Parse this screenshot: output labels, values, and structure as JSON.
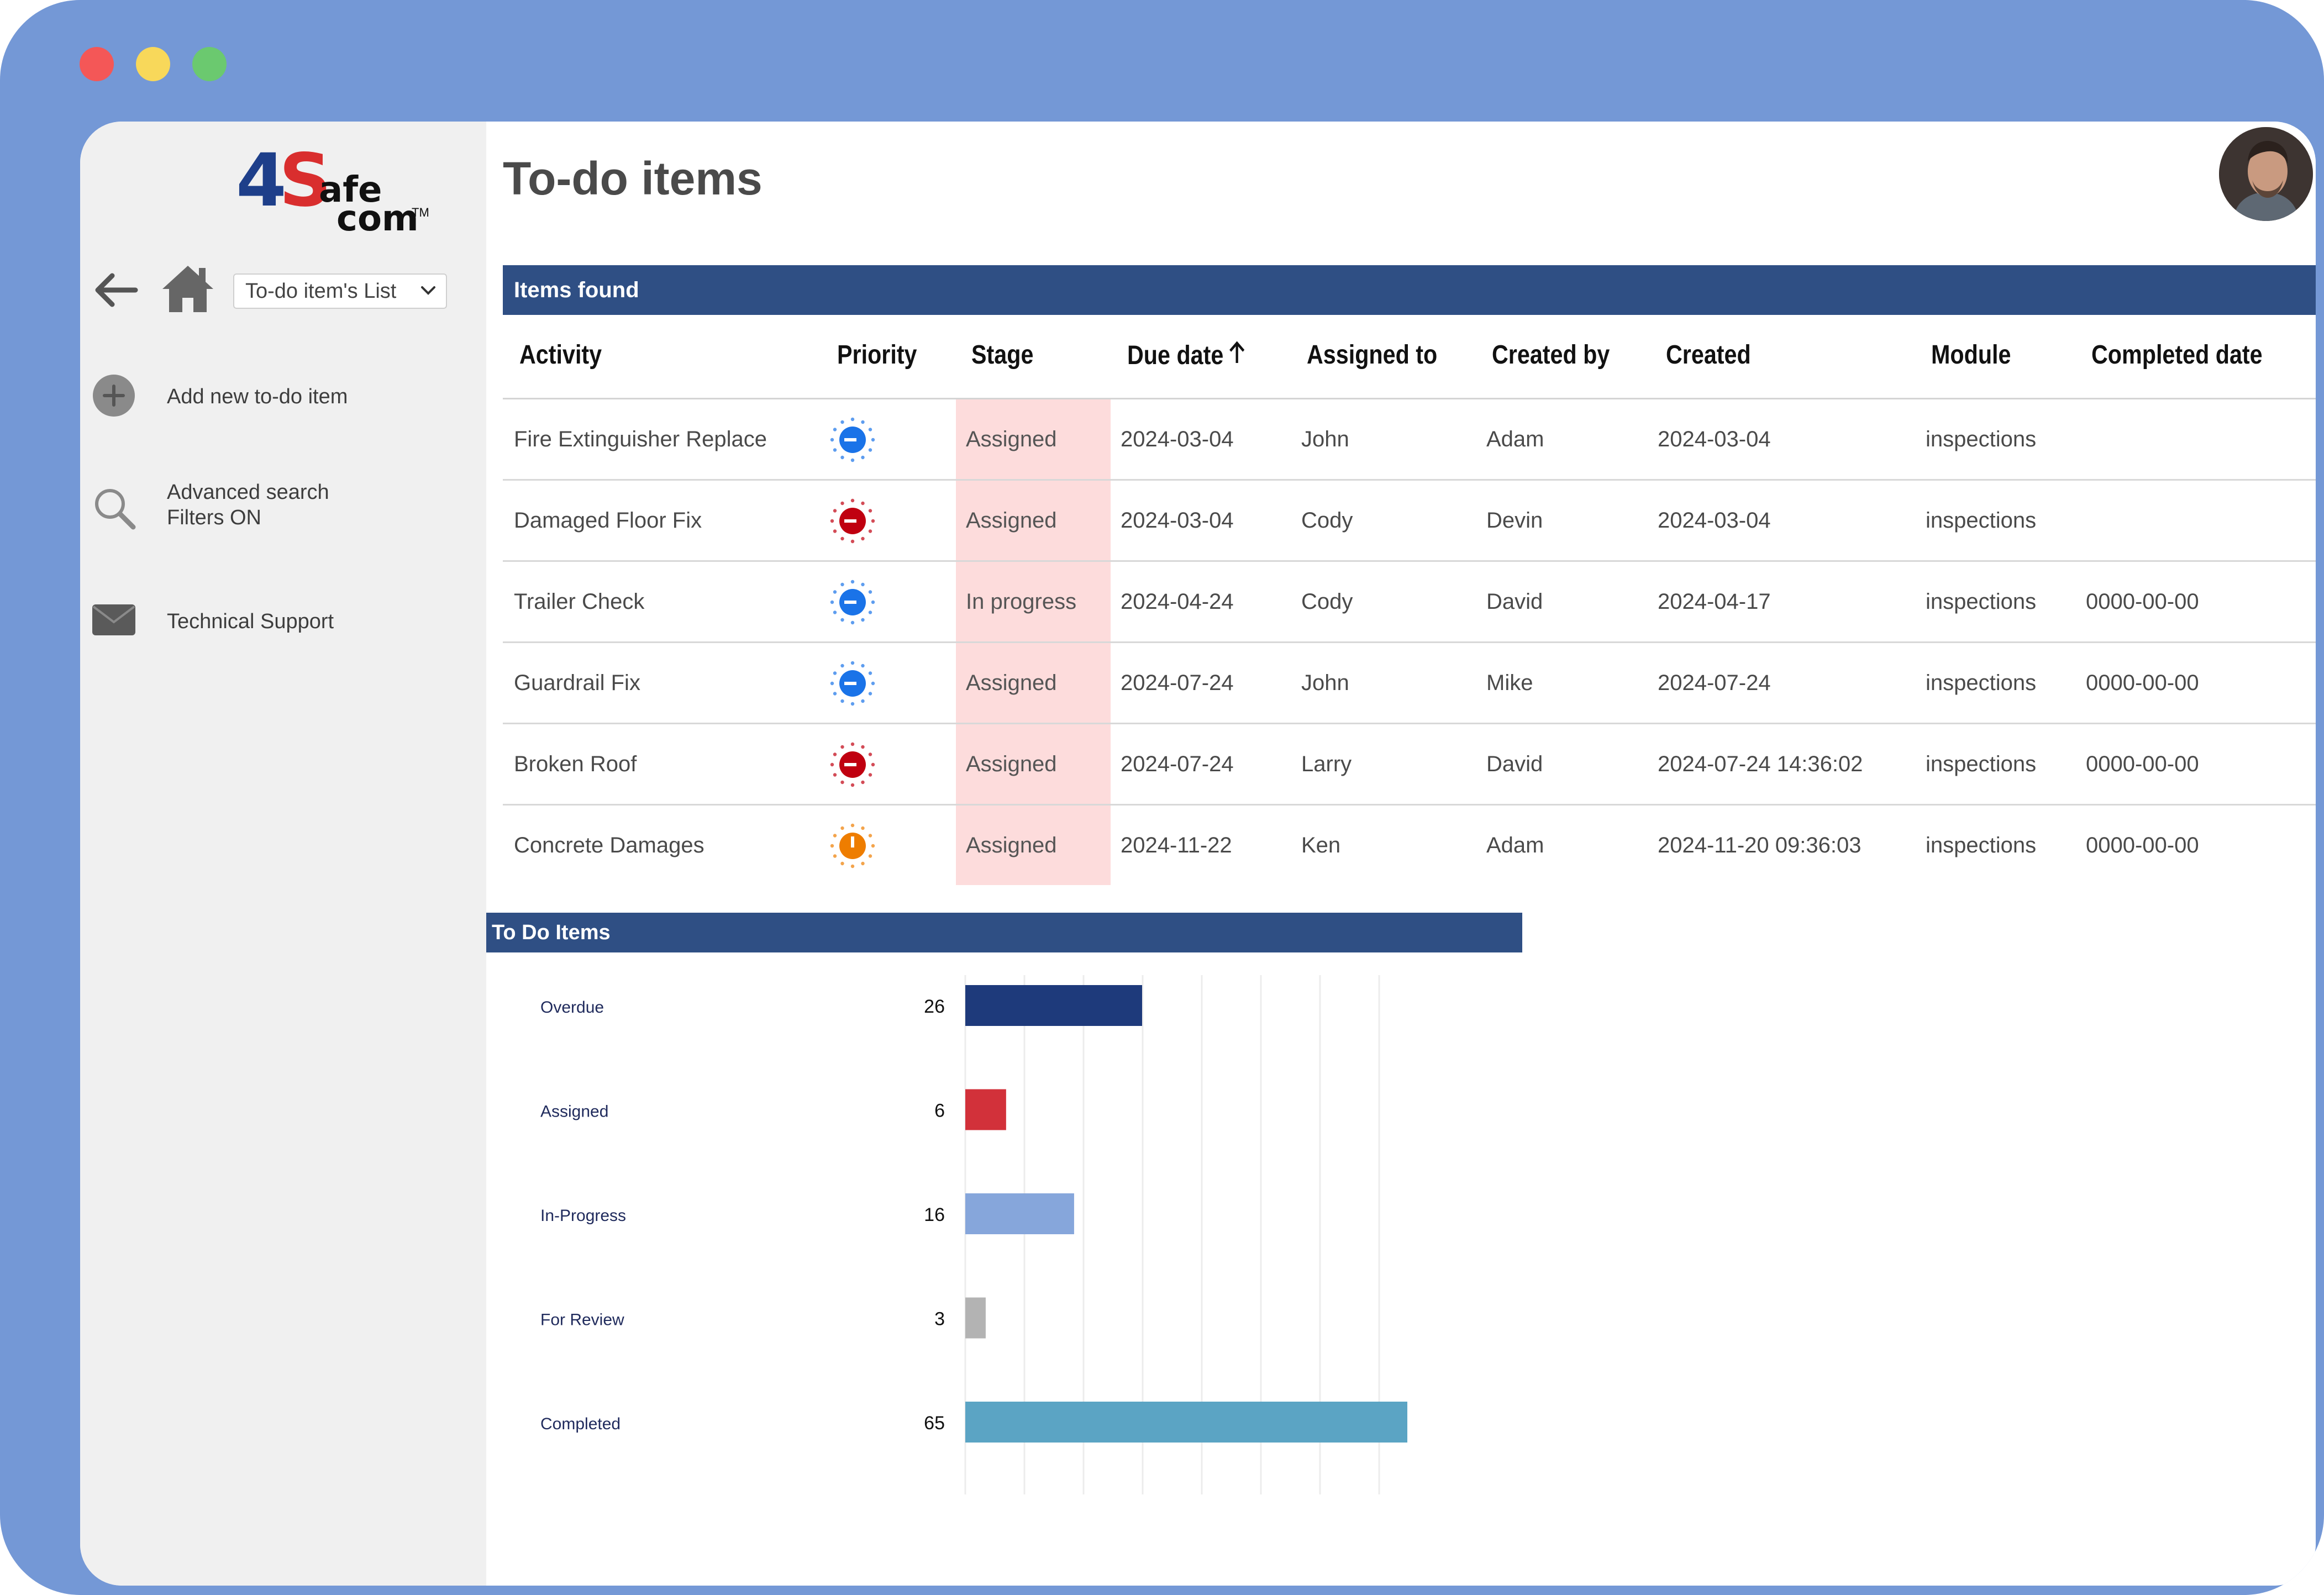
{
  "window": {
    "controls": [
      "close",
      "minimize",
      "maximize"
    ]
  },
  "logo": {
    "four": "4",
    "s": "S",
    "afe": "afe",
    "com": "com",
    "tm": "TM"
  },
  "sidebar": {
    "back_icon": "arrow-left-icon",
    "home_icon": "home-icon",
    "list_select": {
      "value": "To-do item's List"
    },
    "items": [
      {
        "label": "Add new to-do item",
        "icon": "plus-circle-icon"
      },
      {
        "label": "Advanced search",
        "label2": "Filters ON",
        "icon": "search-icon"
      },
      {
        "label": "Technical Support",
        "icon": "envelope-icon"
      }
    ]
  },
  "header": {
    "title": "To-do items"
  },
  "items_section": {
    "title": "Items found",
    "columns": [
      "Activity",
      "Priority",
      "Stage",
      "Due date",
      "Assigned to",
      "Created by",
      "Created",
      "Module",
      "Completed date"
    ],
    "rows": [
      {
        "activity": "Fire Extinguisher Replace",
        "priority": "low",
        "stage": "Assigned",
        "due": "2024-03-04",
        "assigned": "John",
        "created_by": "Adam",
        "created": "2024-03-04",
        "module": "inspections",
        "completed": ""
      },
      {
        "activity": "Damaged Floor Fix",
        "priority": "high",
        "stage": "Assigned",
        "due": "2024-03-04",
        "assigned": "Cody",
        "created_by": "Devin",
        "created": "2024-03-04",
        "module": "inspections",
        "completed": ""
      },
      {
        "activity": "Trailer Check",
        "priority": "low",
        "stage": "In progress",
        "due": "2024-04-24",
        "assigned": "Cody",
        "created_by": "David",
        "created": "2024-04-17",
        "module": "inspections",
        "completed": "0000-00-00"
      },
      {
        "activity": "Guardrail Fix",
        "priority": "low",
        "stage": "Assigned",
        "due": "2024-07-24",
        "assigned": "John",
        "created_by": "Mike",
        "created": "2024-07-24",
        "module": "inspections",
        "completed": "0000-00-00"
      },
      {
        "activity": "Broken Roof",
        "priority": "high",
        "stage": "Assigned",
        "due": "2024-07-24",
        "assigned": "Larry",
        "created_by": "David",
        "created": "2024-07-24 14:36:02",
        "module": "inspections",
        "completed": "0000-00-00"
      },
      {
        "activity": "Concrete Damages",
        "priority": "medium",
        "stage": "Assigned",
        "due": "2024-11-22",
        "assigned": "Ken",
        "created_by": "Adam",
        "created": "2024-11-20 09:36:03",
        "module": "inspections",
        "completed": "0000-00-00"
      }
    ],
    "priority_colors": {
      "low": "#1a73e8",
      "high": "#c00010",
      "medium": "#ee7d00"
    }
  },
  "chart_section": {
    "title": "To Do Items"
  },
  "chart_data": {
    "type": "bar",
    "orientation": "horizontal",
    "categories": [
      "Overdue",
      "Assigned",
      "In-Progress",
      "For Review",
      "Completed"
    ],
    "values": [
      26,
      6,
      16,
      3,
      65
    ],
    "data_labels": [
      "26",
      "6",
      "16",
      "3",
      "65"
    ],
    "colors": [
      "#1e3a7b",
      "#d2313a",
      "#86a6db",
      "#b3b3b3",
      "#5ba4c4"
    ],
    "grid": true,
    "title": "",
    "xlabel": "",
    "ylabel": ""
  }
}
